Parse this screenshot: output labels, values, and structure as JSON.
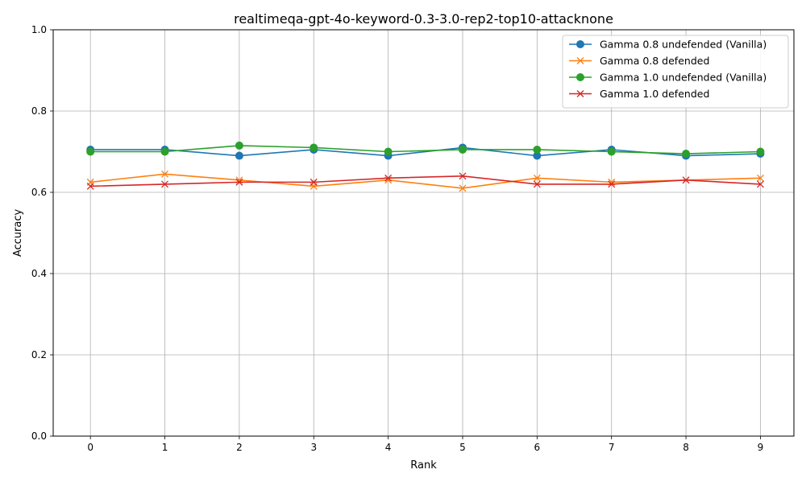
{
  "chart_data": {
    "type": "line",
    "title": "realtimeqa-gpt-4o-keyword-0.3-3.0-rep2-top10-attacknone",
    "xlabel": "Rank",
    "ylabel": "Accuracy",
    "x": [
      0,
      1,
      2,
      3,
      4,
      5,
      6,
      7,
      8,
      9
    ],
    "xlim": [
      -0.5,
      9.45
    ],
    "ylim": [
      0.0,
      1.0
    ],
    "xticks": [
      "0",
      "1",
      "2",
      "3",
      "4",
      "5",
      "6",
      "7",
      "8",
      "9"
    ],
    "yticks": [
      0.0,
      0.2,
      0.4,
      0.6,
      0.8,
      1.0
    ],
    "ytick_labels": [
      "0.0",
      "0.2",
      "0.4",
      "0.6",
      "0.8",
      "1.0"
    ],
    "grid": true,
    "legend_position": "top-right",
    "series": [
      {
        "name": "Gamma 0.8 undefended (Vanilla)",
        "color": "#1f77b4",
        "marker": "circle",
        "values": [
          0.705,
          0.705,
          0.69,
          0.705,
          0.69,
          0.71,
          0.69,
          0.705,
          0.69,
          0.695
        ]
      },
      {
        "name": "Gamma 0.8 defended",
        "color": "#ff7f0e",
        "marker": "x",
        "values": [
          0.625,
          0.645,
          0.63,
          0.615,
          0.63,
          0.61,
          0.635,
          0.625,
          0.63,
          0.635
        ]
      },
      {
        "name": "Gamma 1.0 undefended (Vanilla)",
        "color": "#2ca02c",
        "marker": "circle",
        "values": [
          0.7,
          0.7,
          0.715,
          0.71,
          0.7,
          0.705,
          0.705,
          0.7,
          0.695,
          0.7
        ]
      },
      {
        "name": "Gamma 1.0 defended",
        "color": "#d62728",
        "marker": "x",
        "values": [
          0.615,
          0.62,
          0.625,
          0.625,
          0.635,
          0.64,
          0.62,
          0.62,
          0.63,
          0.62
        ]
      }
    ]
  }
}
